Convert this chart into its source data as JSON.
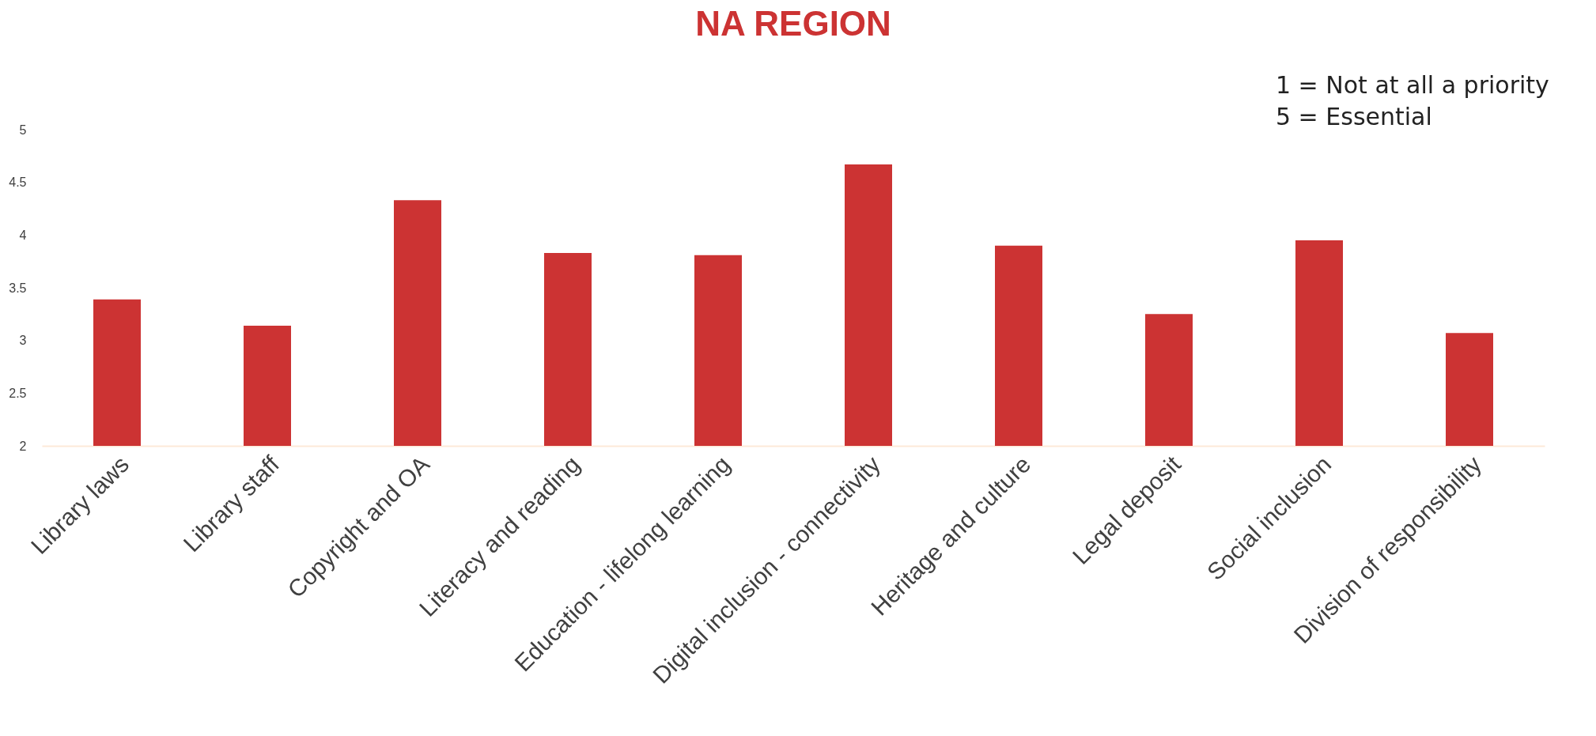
{
  "chart_data": {
    "type": "bar",
    "title": "NA REGION",
    "categories": [
      "Library laws",
      "Library staff",
      "Copyright and OA",
      "Literacy and reading",
      "Education - lifelong learning",
      "Digital inclusion - connectivity",
      "Heritage and culture",
      "Legal deposit",
      "Social inclusion",
      "Division of responsibility"
    ],
    "values": [
      3.39,
      3.14,
      4.33,
      3.83,
      3.81,
      4.67,
      3.9,
      3.25,
      3.95,
      3.07
    ],
    "color": "#cc3333",
    "ylim": [
      2,
      5
    ],
    "yticks": [
      2,
      2.5,
      3,
      3.5,
      4,
      4.5,
      5
    ],
    "grid": false,
    "annotations": [
      "1 = Not at all a priority",
      "5 = Essential"
    ]
  }
}
